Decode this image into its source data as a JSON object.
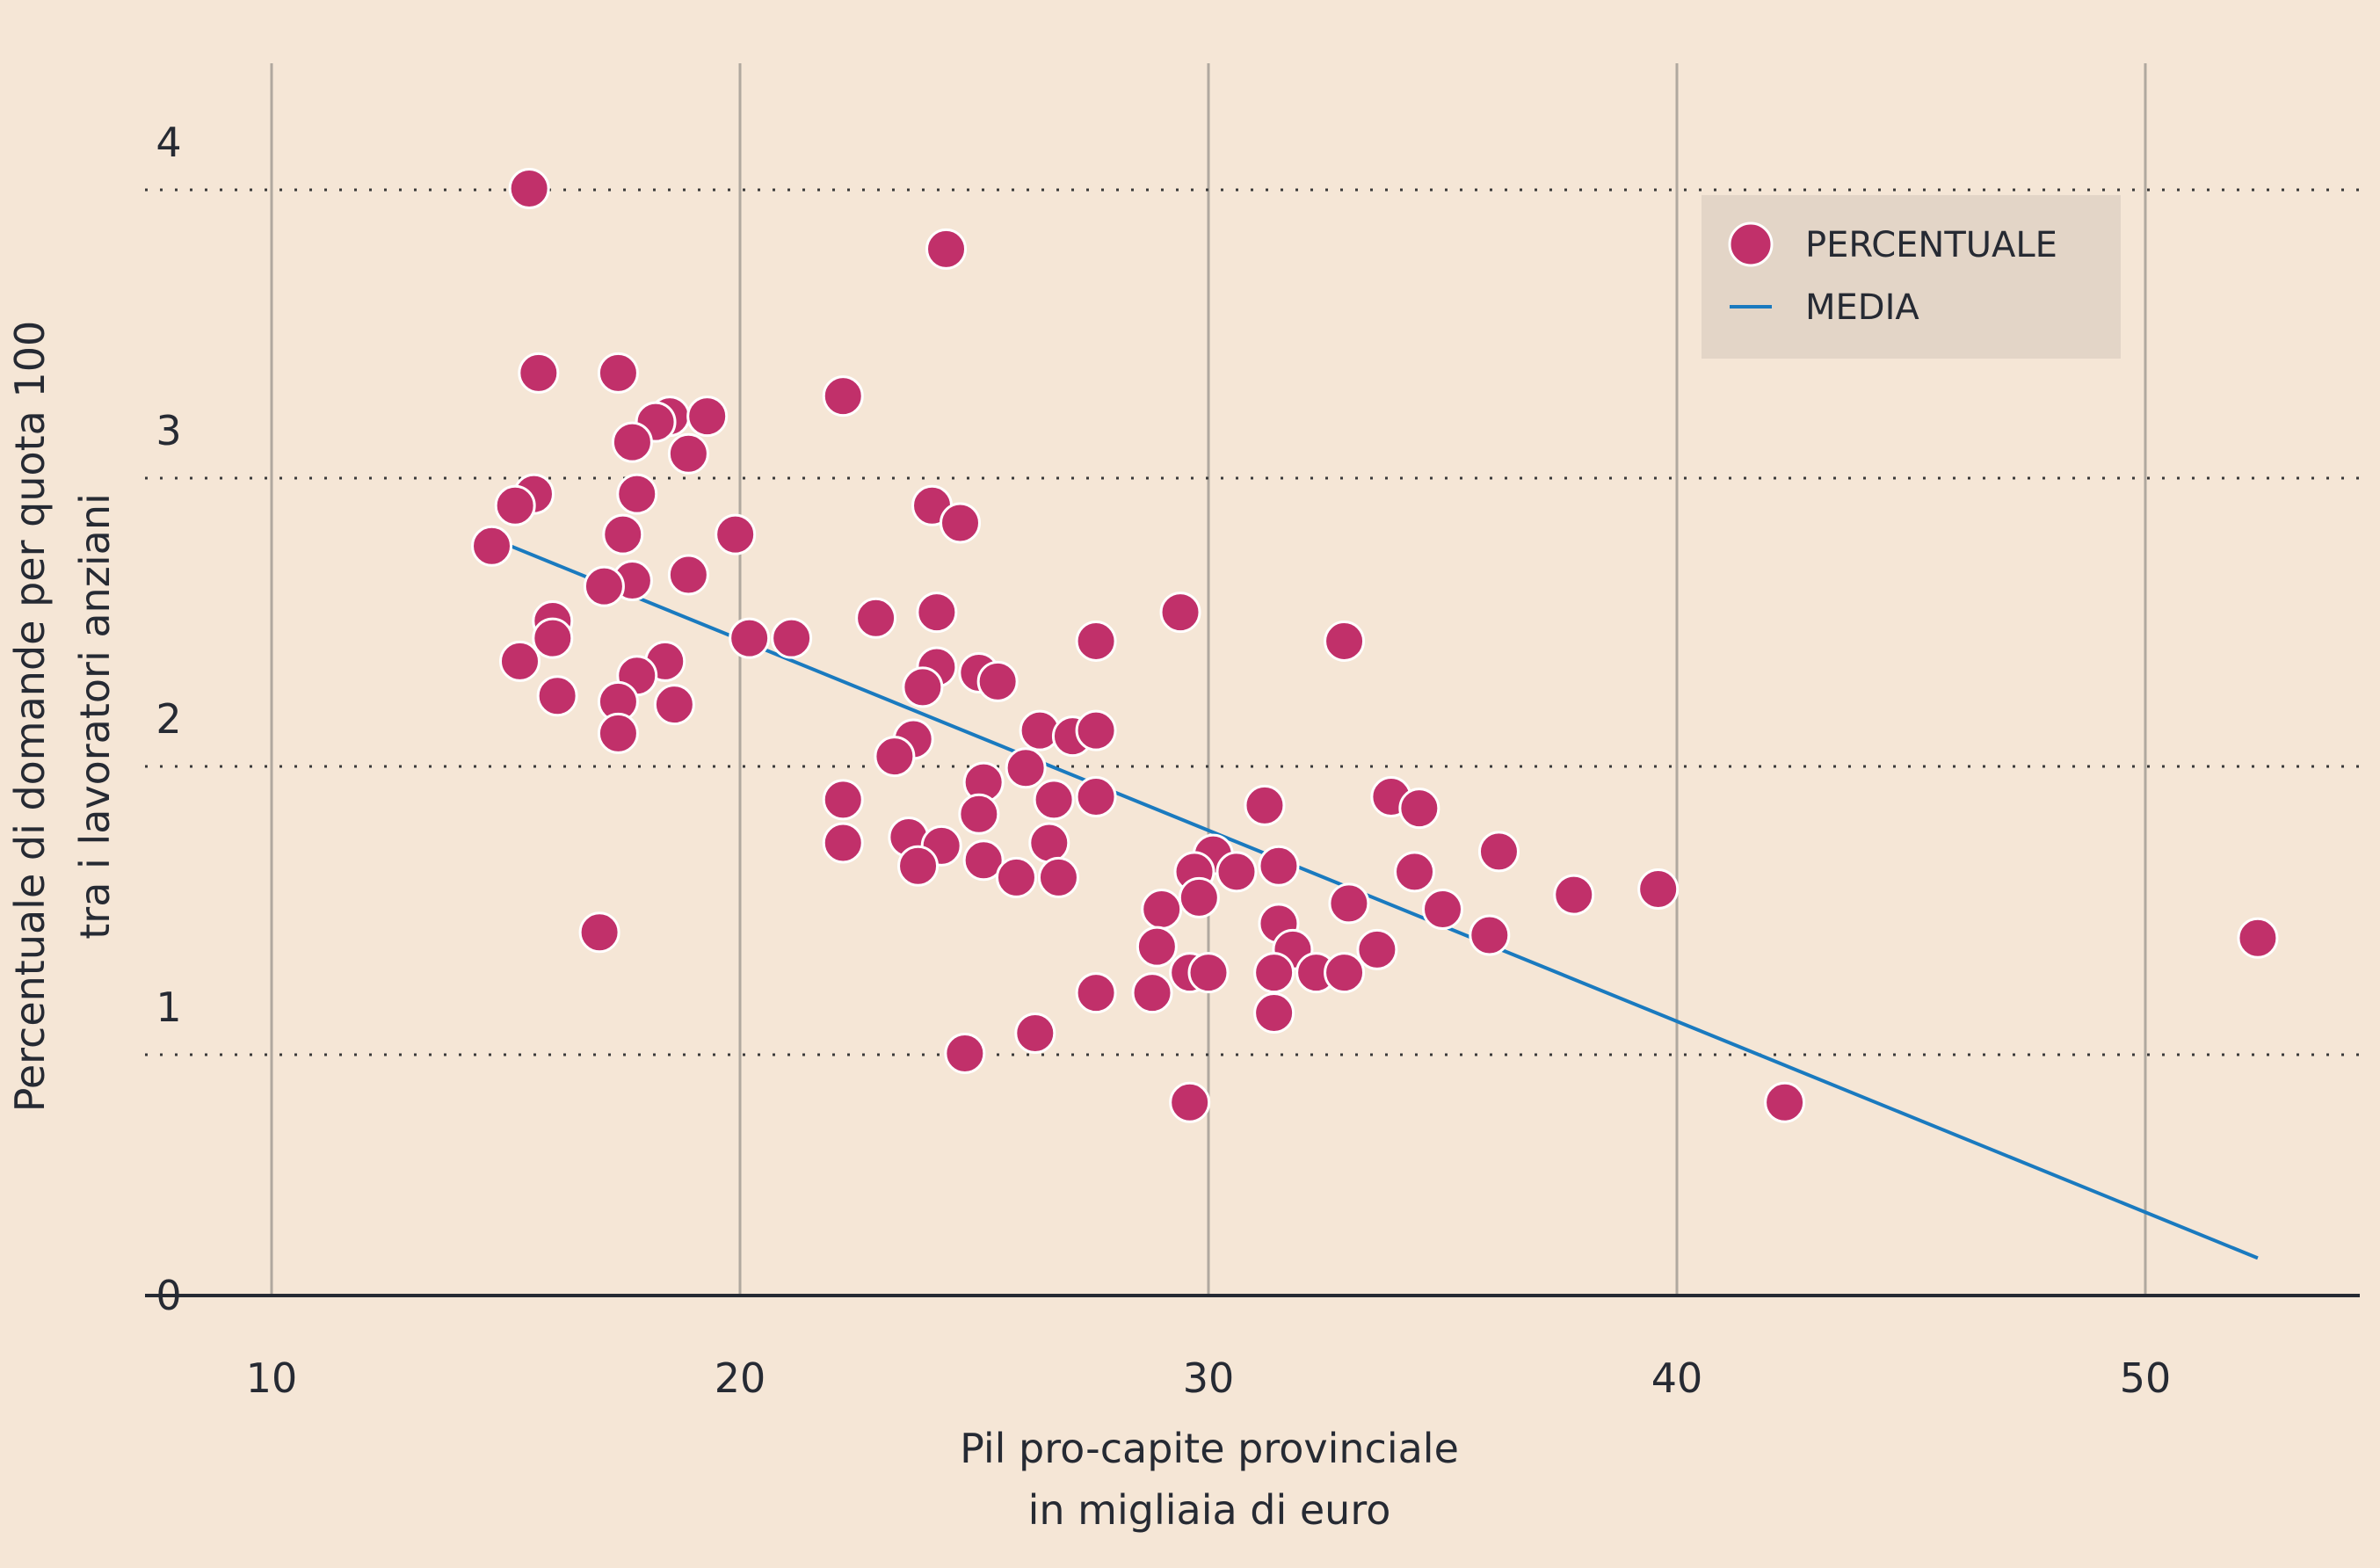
{
  "chart_data": {
    "type": "scatter",
    "xlabel": [
      "Pil pro-capite provinciale",
      "in migliaia di euro"
    ],
    "ylabel": [
      "Percentuale di domande per quota 100",
      "tra i lavoratori anziani"
    ],
    "xlim": [
      7.3,
      54.5
    ],
    "ylim": [
      -0.15,
      4.3
    ],
    "x_ticks": [
      "10",
      "20",
      "30",
      "40",
      "50"
    ],
    "y_ticks": [
      "0",
      "1",
      "2",
      "3",
      "4"
    ],
    "grid": {
      "x": "solid vertical",
      "y": "dotted horizontal"
    },
    "legend_position": "top-right",
    "legend": [
      {
        "label": "PERCENTUALE",
        "marker": "circle"
      },
      {
        "label": "MEDIA",
        "marker": "line"
      }
    ],
    "colors": {
      "background": "#f5e6d6",
      "points": "#c1306a",
      "point_stroke": "#ffffff",
      "line": "#1a7abf",
      "legend_bg": "#e3d5c7",
      "grid": "#b0a89f",
      "axis": "#262a33"
    },
    "series": [
      {
        "name": "PERCENTUALE",
        "type": "scatter",
        "points": [
          [
            15.5,
            3.84
          ],
          [
            24.4,
            3.63
          ],
          [
            15.7,
            3.2
          ],
          [
            17.4,
            3.2
          ],
          [
            22.2,
            3.12
          ],
          [
            18.5,
            3.05
          ],
          [
            19.3,
            3.05
          ],
          [
            18.2,
            3.03
          ],
          [
            17.7,
            2.96
          ],
          [
            18.9,
            2.92
          ],
          [
            15.6,
            2.78
          ],
          [
            17.8,
            2.78
          ],
          [
            15.2,
            2.74
          ],
          [
            24.1,
            2.74
          ],
          [
            24.7,
            2.68
          ],
          [
            14.7,
            2.6
          ],
          [
            17.5,
            2.64
          ],
          [
            19.9,
            2.64
          ],
          [
            17.7,
            2.48
          ],
          [
            18.9,
            2.5
          ],
          [
            17.1,
            2.46
          ],
          [
            22.9,
            2.35
          ],
          [
            24.2,
            2.37
          ],
          [
            29.4,
            2.37
          ],
          [
            16.0,
            2.34
          ],
          [
            15.3,
            2.2
          ],
          [
            16.0,
            2.28
          ],
          [
            20.2,
            2.28
          ],
          [
            21.1,
            2.28
          ],
          [
            27.6,
            2.27
          ],
          [
            32.9,
            2.27
          ],
          [
            18.4,
            2.2
          ],
          [
            17.8,
            2.15
          ],
          [
            24.2,
            2.18
          ],
          [
            25.1,
            2.16
          ],
          [
            25.5,
            2.13
          ],
          [
            23.9,
            2.11
          ],
          [
            16.1,
            2.08
          ],
          [
            17.4,
            2.06
          ],
          [
            18.6,
            2.05
          ],
          [
            17.4,
            1.95
          ],
          [
            23.7,
            1.93
          ],
          [
            26.4,
            1.96
          ],
          [
            27.1,
            1.94
          ],
          [
            27.6,
            1.96
          ],
          [
            23.3,
            1.87
          ],
          [
            26.1,
            1.83
          ],
          [
            25.2,
            1.78
          ],
          [
            22.2,
            1.72
          ],
          [
            26.7,
            1.72
          ],
          [
            27.6,
            1.73
          ],
          [
            31.2,
            1.7
          ],
          [
            33.9,
            1.73
          ],
          [
            34.5,
            1.69
          ],
          [
            25.1,
            1.67
          ],
          [
            23.6,
            1.59
          ],
          [
            24.3,
            1.56
          ],
          [
            26.6,
            1.57
          ],
          [
            22.2,
            1.57
          ],
          [
            23.8,
            1.49
          ],
          [
            25.2,
            1.51
          ],
          [
            25.9,
            1.45
          ],
          [
            26.8,
            1.45
          ],
          [
            30.1,
            1.53
          ],
          [
            29.7,
            1.47
          ],
          [
            30.6,
            1.47
          ],
          [
            31.5,
            1.49
          ],
          [
            34.4,
            1.47
          ],
          [
            36.2,
            1.54
          ],
          [
            29.8,
            1.38
          ],
          [
            33.0,
            1.36
          ],
          [
            29.0,
            1.34
          ],
          [
            35.0,
            1.34
          ],
          [
            37.8,
            1.39
          ],
          [
            39.6,
            1.41
          ],
          [
            31.5,
            1.29
          ],
          [
            36.0,
            1.25
          ],
          [
            52.4,
            1.24
          ],
          [
            17.0,
            1.26
          ],
          [
            28.9,
            1.21
          ],
          [
            31.8,
            1.2
          ],
          [
            33.6,
            1.2
          ],
          [
            29.6,
            1.12
          ],
          [
            30.0,
            1.12
          ],
          [
            31.4,
            1.12
          ],
          [
            32.3,
            1.12
          ],
          [
            32.9,
            1.12
          ],
          [
            27.6,
            1.05
          ],
          [
            28.8,
            1.05
          ],
          [
            31.4,
            0.98
          ],
          [
            26.3,
            0.91
          ],
          [
            24.8,
            0.84
          ],
          [
            29.6,
            0.67
          ],
          [
            42.3,
            0.67
          ]
        ]
      },
      {
        "name": "MEDIA",
        "type": "line",
        "points": [
          [
            15.1,
            2.6
          ],
          [
            52.4,
            0.13
          ]
        ]
      }
    ]
  }
}
